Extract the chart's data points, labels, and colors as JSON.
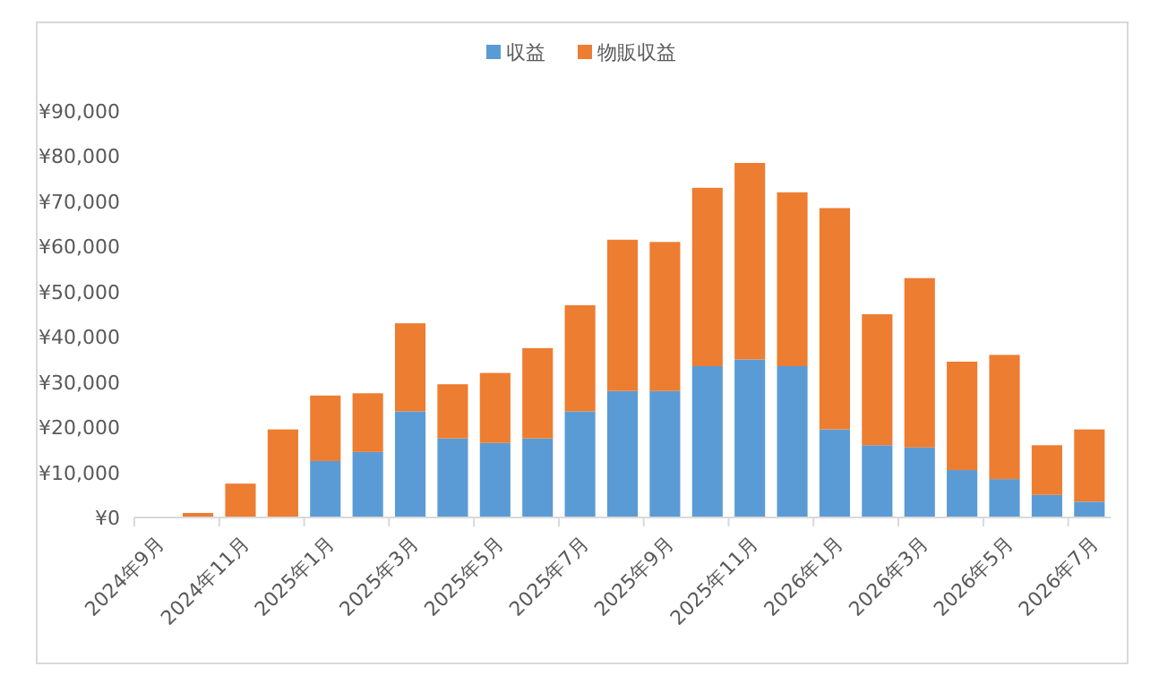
{
  "chart_data": {
    "type": "bar",
    "stacked": true,
    "legend": "top",
    "grid": false,
    "categories": [
      "2024年9月",
      null,
      "2024年11月",
      null,
      "2025年1月",
      null,
      "2025年3月",
      null,
      "2025年5月",
      null,
      "2025年7月",
      null,
      "2025年9月",
      null,
      "2025年11月",
      null,
      "2026年1月",
      null,
      "2026年3月",
      null,
      "2026年5月",
      null,
      "2026年7月"
    ],
    "series": [
      {
        "name": "収益",
        "color": "#5b9bd5",
        "values": [
          0,
          0,
          0,
          0,
          12500,
          14500,
          23500,
          17500,
          16500,
          17500,
          23500,
          28000,
          28000,
          33500,
          35000,
          33500,
          19500,
          16000,
          15500,
          10500,
          8500,
          5000,
          3500
        ]
      },
      {
        "name": "物販収益",
        "color": "#ed7d31",
        "values": [
          0,
          1000,
          7500,
          19500,
          14500,
          13000,
          19500,
          12000,
          15500,
          20000,
          23500,
          33500,
          33000,
          39500,
          43500,
          38500,
          49000,
          29000,
          37500,
          24000,
          27500,
          11000,
          16000
        ]
      }
    ],
    "ylim": [
      0,
      90000
    ],
    "yticks": [
      {
        "value": 0,
        "label": "¥0"
      },
      {
        "value": 10000,
        "label": "¥10,000"
      },
      {
        "value": 20000,
        "label": "¥20,000"
      },
      {
        "value": 30000,
        "label": "¥30,000"
      },
      {
        "value": 40000,
        "label": "¥40,000"
      },
      {
        "value": 50000,
        "label": "¥50,000"
      },
      {
        "value": 60000,
        "label": "¥60,000"
      },
      {
        "value": 70000,
        "label": "¥70,000"
      },
      {
        "value": 80000,
        "label": "¥80,000"
      },
      {
        "value": 90000,
        "label": "¥90,000"
      }
    ]
  }
}
